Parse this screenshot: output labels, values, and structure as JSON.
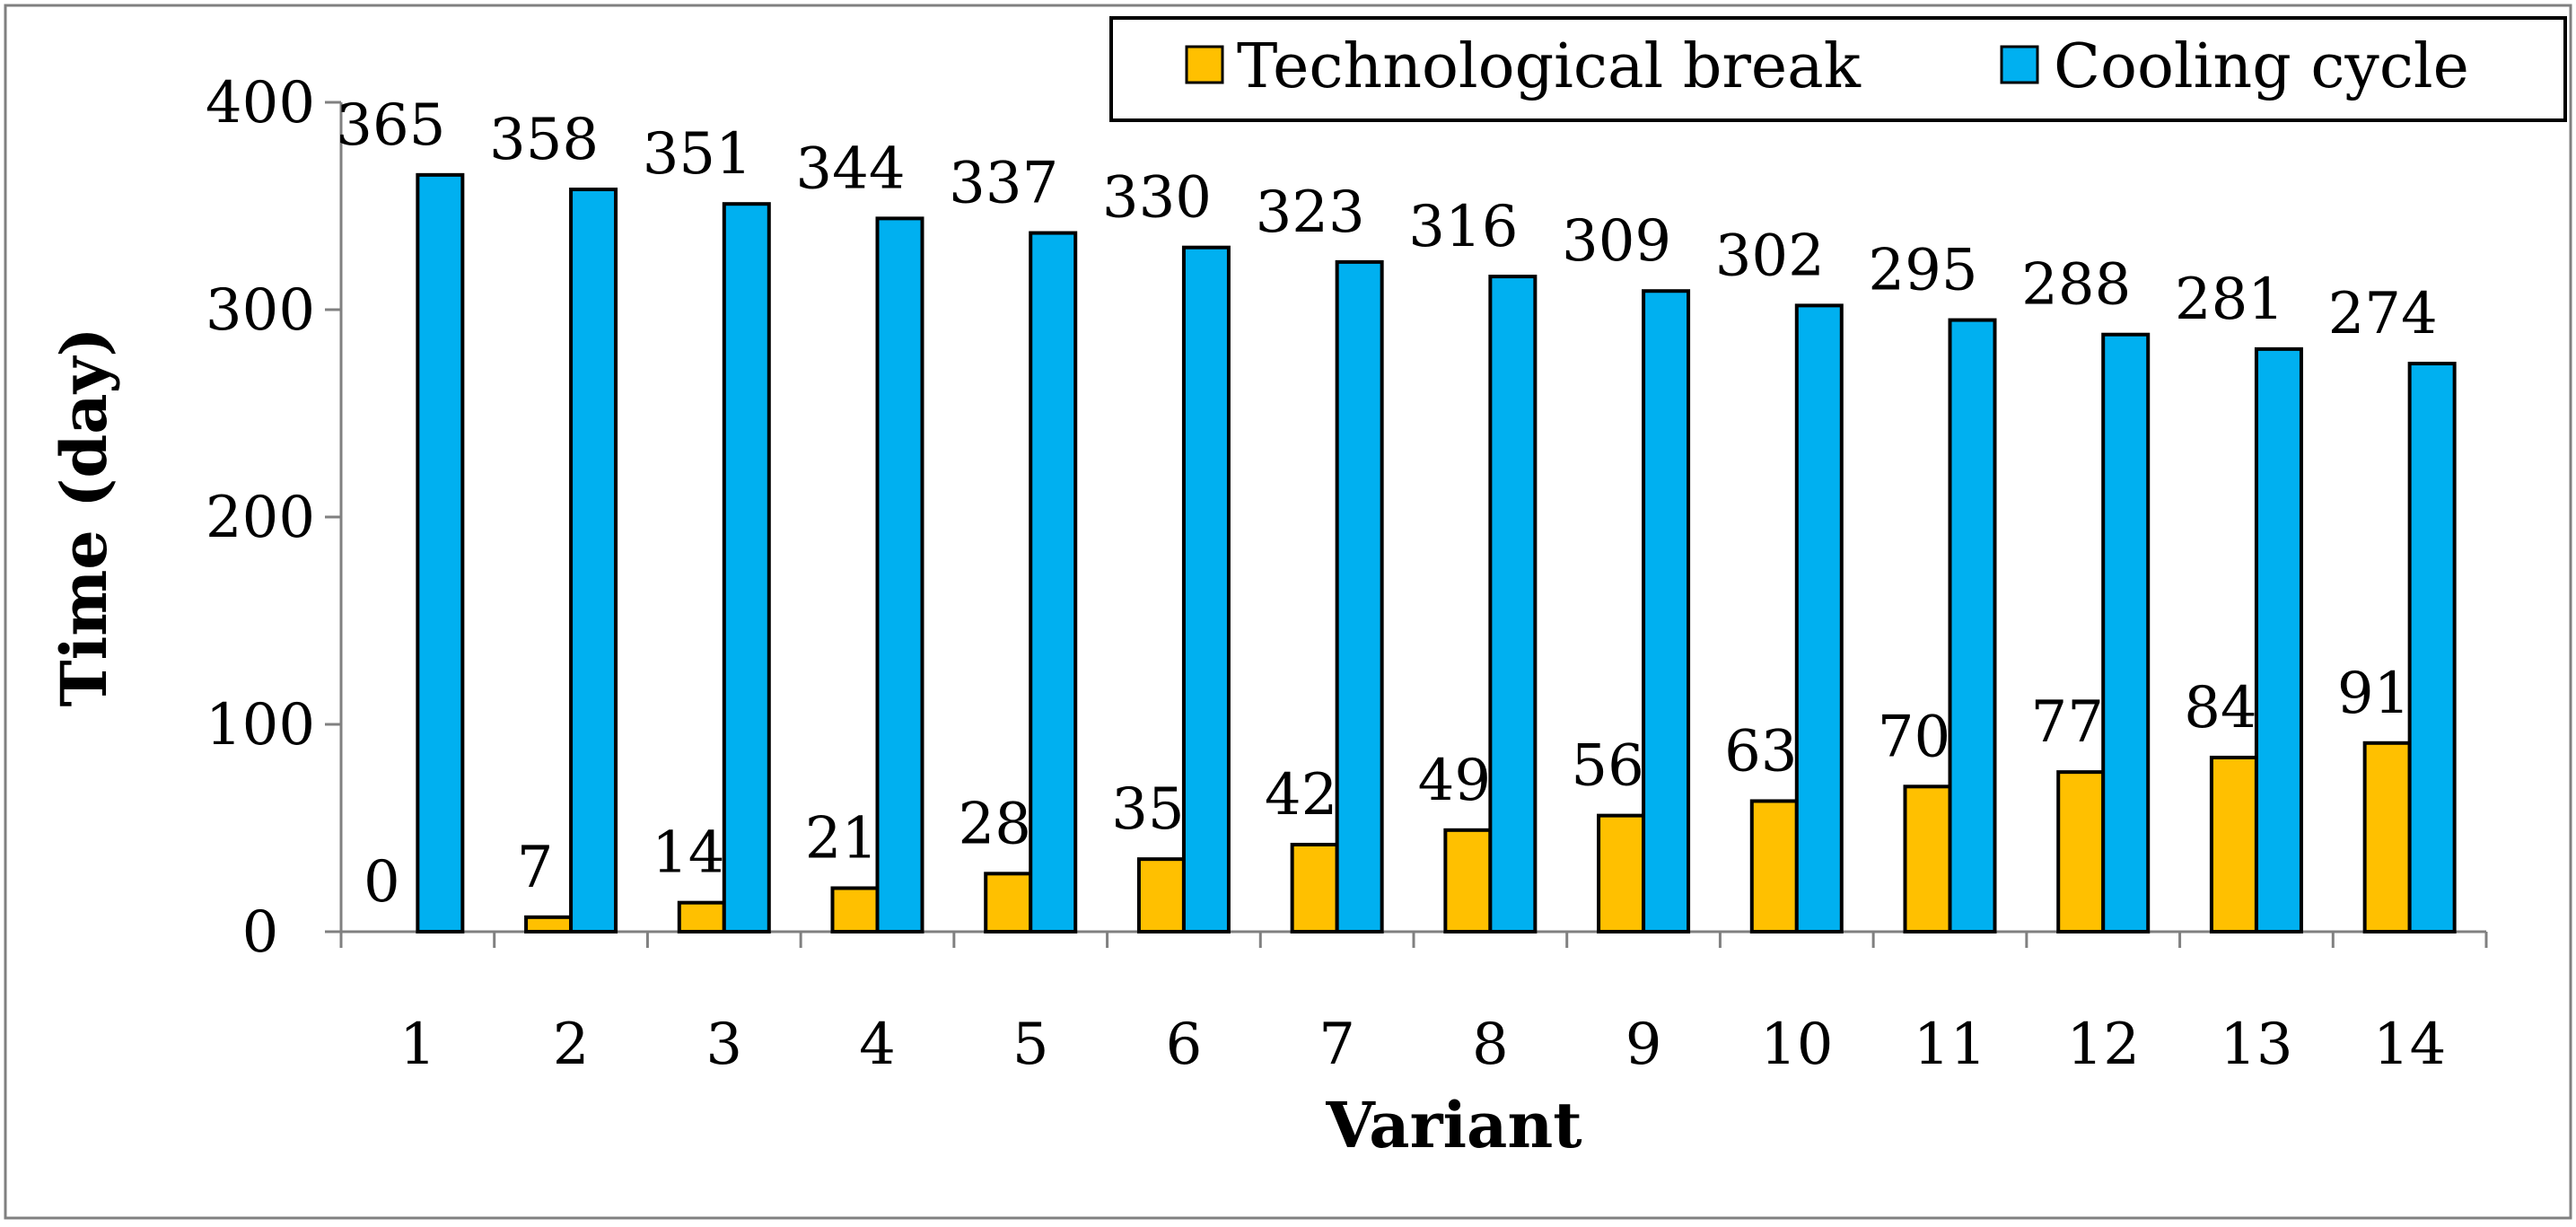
{
  "chart_data": {
    "type": "bar",
    "title": "",
    "xlabel": "Variant",
    "ylabel": "Time (day)",
    "categories": [
      "1",
      "2",
      "3",
      "4",
      "5",
      "6",
      "7",
      "8",
      "9",
      "10",
      "11",
      "12",
      "13",
      "14"
    ],
    "series": [
      {
        "name": "Technological break",
        "color": "#FFC000",
        "values": [
          0,
          7,
          14,
          21,
          28,
          35,
          42,
          49,
          56,
          63,
          70,
          77,
          84,
          91
        ]
      },
      {
        "name": "Cooling cycle",
        "color": "#00B0F0",
        "values": [
          365,
          358,
          351,
          344,
          337,
          330,
          323,
          316,
          309,
          302,
          295,
          288,
          281,
          274
        ]
      }
    ],
    "ylim": [
      0,
      400
    ],
    "yticks": [
      0,
      100,
      200,
      300,
      400
    ],
    "grid": false,
    "legend_position": "top-right",
    "data_labels": true
  }
}
